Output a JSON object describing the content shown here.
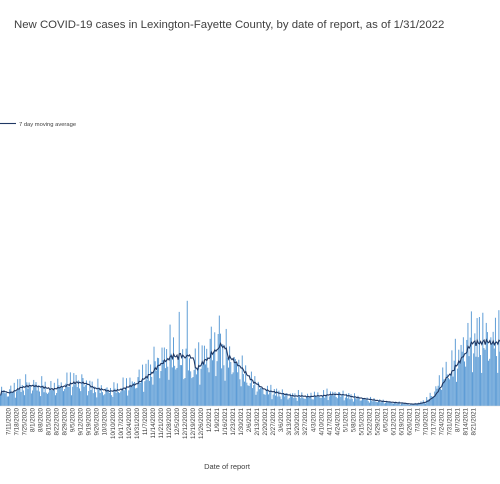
{
  "chart_data": {
    "type": "bar",
    "title": "New COVID-19 cases in Lexington-Fayette County, by date of report, as of 1/31/2022",
    "xlabel": "Date of report",
    "ylabel": "",
    "legend": {
      "label": "7 day moving average",
      "placement": "left"
    },
    "grid": false,
    "bar_color": "#5b9bd5",
    "line_color": "#1f3864",
    "tick_labels": [
      "7/11/2020",
      "7/18/2020",
      "7/25/2020",
      "8/1/2020",
      "8/8/2020",
      "8/15/2020",
      "8/22/2020",
      "8/29/2020",
      "9/5/2020",
      "9/12/2020",
      "9/19/2020",
      "9/26/2020",
      "10/3/2020",
      "10/10/2020",
      "10/17/2020",
      "10/24/2020",
      "10/31/2020",
      "11/7/2020",
      "11/14/2020",
      "11/21/2020",
      "11/28/2020",
      "12/5/2020",
      "12/12/2020",
      "12/19/2020",
      "12/26/2020",
      "1/2/2021",
      "1/9/2021",
      "1/16/2021",
      "1/23/2021",
      "1/30/2021",
      "2/6/2021",
      "2/13/2021",
      "2/20/2021",
      "2/27/2021",
      "3/6/2021",
      "3/13/2021",
      "3/20/2021",
      "3/27/2021",
      "4/3/2021",
      "4/10/2021",
      "4/17/2021",
      "4/24/2021",
      "5/1/2021",
      "5/8/2021",
      "5/15/2021",
      "5/22/2021",
      "5/29/2021",
      "6/5/2021",
      "6/12/2021",
      "6/19/2021",
      "6/26/2021",
      "7/3/2021",
      "7/10/2021",
      "7/17/2021",
      "7/24/2021",
      "7/31/2021",
      "8/7/2021",
      "8/14/2021",
      "8/21/2021"
    ],
    "weekly_avg": [
      40,
      55,
      60,
      60,
      55,
      50,
      55,
      65,
      70,
      70,
      55,
      50,
      45,
      45,
      55,
      60,
      75,
      90,
      115,
      135,
      150,
      145,
      120,
      110,
      135,
      155,
      165,
      145,
      130,
      100,
      75,
      55,
      45,
      40,
      35,
      30,
      30,
      28,
      30,
      32,
      35,
      35,
      30,
      25,
      22,
      18,
      15,
      12,
      10,
      8,
      5,
      8,
      15,
      40,
      80,
      110,
      140,
      180,
      190
    ],
    "spikes": [
      {
        "date": "12/5/2020",
        "value": 255
      },
      {
        "date": "12/12/2020",
        "value": 285
      },
      {
        "date": "1/2/2021",
        "value": 215
      },
      {
        "date": "1/9/2021",
        "value": 245
      },
      {
        "date": "8/14/2021",
        "value": 225
      }
    ],
    "ylim": [
      0,
      1100
    ]
  }
}
